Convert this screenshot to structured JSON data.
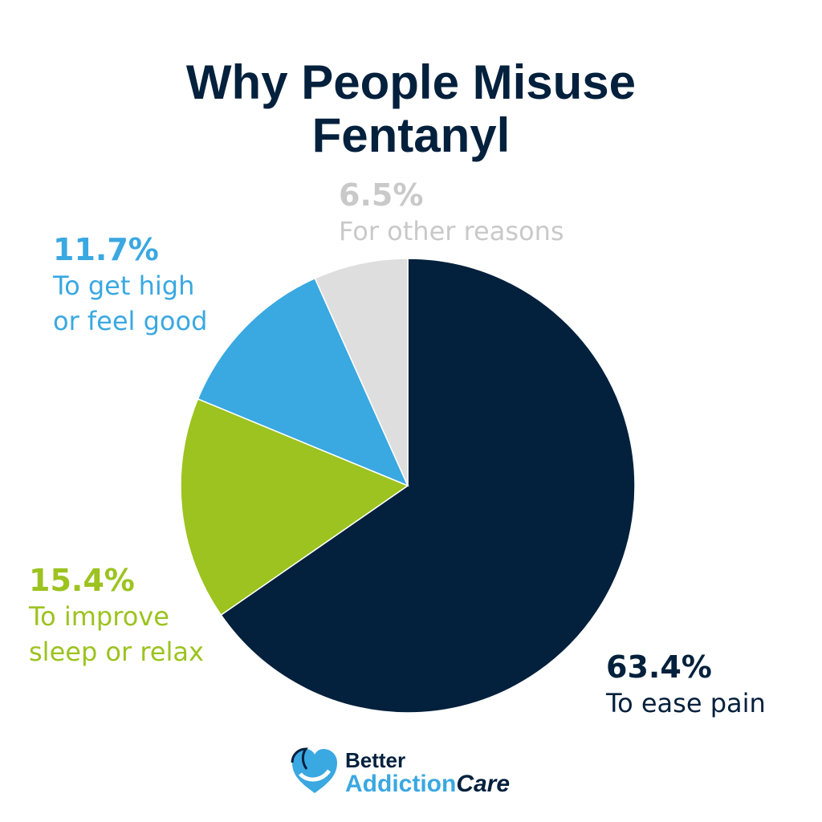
{
  "chart_data": {
    "type": "pie",
    "title": "Why People Misuse Fentanyl",
    "categories": [
      "To ease pain",
      "To improve sleep or relax",
      "To get high or feel good",
      "For other reasons"
    ],
    "values": [
      63.4,
      15.4,
      11.7,
      6.5
    ],
    "value_labels": [
      "63.4%",
      "15.4%",
      "11.7%",
      "6.5%"
    ],
    "colors": [
      "#03203c",
      "#9cc31f",
      "#3aa8e1",
      "#dedede"
    ],
    "label_colors": [
      "#03203c",
      "#9cc31f",
      "#3aa8e1",
      "#c9c9c9"
    ]
  },
  "logo": {
    "line1": "Better",
    "line2a": "Addiction",
    "line2b": "Care"
  }
}
